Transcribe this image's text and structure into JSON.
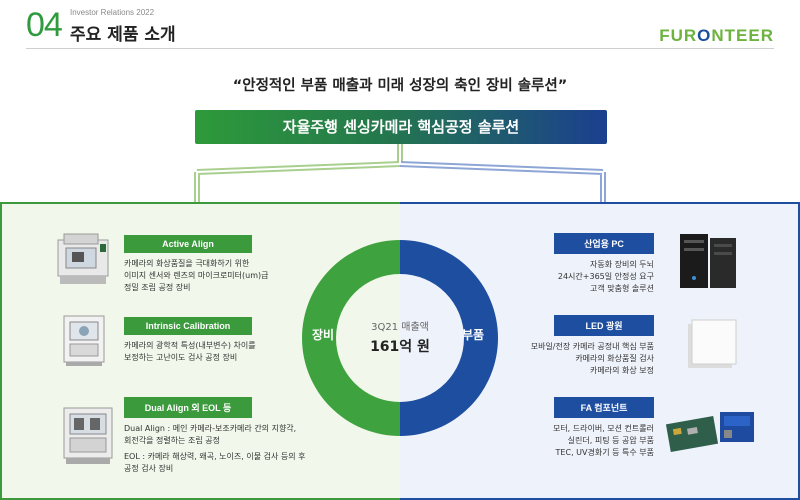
{
  "header": {
    "section_number": "04",
    "ir_label": "Investor Relations 2022",
    "title": "주요 제품 소개",
    "logo_part1": "FUR",
    "logo_part2": "O",
    "logo_part3": "NTEER"
  },
  "quote": "“안정적인 부품 매출과 미래 성장의 축인 장비 솔루션”",
  "banner": "자율주행 센싱카메라 핵심공정 솔루션",
  "donut": {
    "left_label": "장비",
    "right_label": "부품",
    "center_sub": "3Q21 매출액",
    "center_main": "161억 원",
    "equipment_share": 0.5,
    "colors": {
      "equipment": "#3ea33f",
      "parts": "#1e4ea0"
    }
  },
  "equipment": [
    {
      "tag": "Active Align",
      "lines": [
        "카메라의 화상품질을 극대화하기 위한",
        "이미지 센서와 렌즈의 마이크로미터(um)급",
        "정밀 조립 공정 장비"
      ]
    },
    {
      "tag": "Intrinsic Calibration",
      "lines": [
        "카메라의 광학적 특성(내부변수) 차이를",
        "보정하는 고난이도 검사 공정 장비"
      ]
    },
    {
      "tag": "Dual Align 외 EOL 등",
      "lines": [
        "Dual Align : 메인 카메라-보조카메라 간의 지향각,",
        "회전각을 정렬하는 조립 공정",
        "EOL : 카메라 해상력, 왜곡, 노이즈, 이물 검사 등의 후",
        "공정 검사 장비"
      ]
    }
  ],
  "parts": [
    {
      "tag": "산업용 PC",
      "lines": [
        "자동화 장비의 두뇌",
        "24시간+365일 안정성 요구",
        "고객 맞춤형 솔루션"
      ]
    },
    {
      "tag": "LED 광원",
      "lines": [
        "모바일/전장 카메라 공정내 핵심 부품",
        "카메라의 화상품질 검사",
        "카메라의 화상 보정"
      ]
    },
    {
      "tag": "FA 컴포넌트",
      "lines": [
        "모터, 드라이버, 모션 컨트롤러",
        "실린더, 피팅 등 공압 부품",
        "TEC, UV경화기 등 특수 부품"
      ]
    }
  ]
}
